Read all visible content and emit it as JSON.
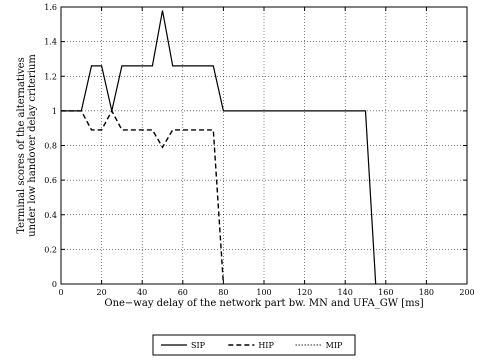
{
  "chart_data": {
    "type": "line",
    "title": "",
    "xlabel": "One−way delay of the network part bw. MN and UFA_GW [ms]",
    "ylabel": [
      "Terminal scores of the alternatives",
      "under low handover delay criterium"
    ],
    "xlim": [
      0,
      200
    ],
    "ylim": [
      0,
      1.6
    ],
    "xticks": [
      "0",
      "20",
      "40",
      "60",
      "80",
      "100",
      "120",
      "140",
      "160",
      "180",
      "200"
    ],
    "yticks": [
      "0",
      "0.2",
      "0.4",
      "0.6",
      "0.8",
      "1",
      "1.2",
      "1.4",
      "1.6"
    ],
    "grid": true,
    "legend_position": "bottom-center",
    "series": [
      {
        "name": "SIP",
        "style": "solid",
        "color": "#000000",
        "x": [
          0,
          10,
          15,
          20,
          25,
          30,
          45,
          50,
          55,
          75,
          80,
          150,
          155
        ],
        "y": [
          1.0,
          1.0,
          1.26,
          1.26,
          1.0,
          1.26,
          1.26,
          1.58,
          1.26,
          1.26,
          1.0,
          1.0,
          0.0
        ]
      },
      {
        "name": "HIP",
        "style": "dashed",
        "color": "#000000",
        "x": [
          0,
          10,
          15,
          20,
          25,
          30,
          45,
          50,
          55,
          75,
          80
        ],
        "y": [
          1.0,
          1.0,
          0.89,
          0.89,
          1.0,
          0.89,
          0.89,
          0.79,
          0.89,
          0.89,
          0.0
        ]
      },
      {
        "name": "MIP",
        "style": "dotted",
        "color": "#000000",
        "x": [],
        "y": []
      }
    ]
  }
}
